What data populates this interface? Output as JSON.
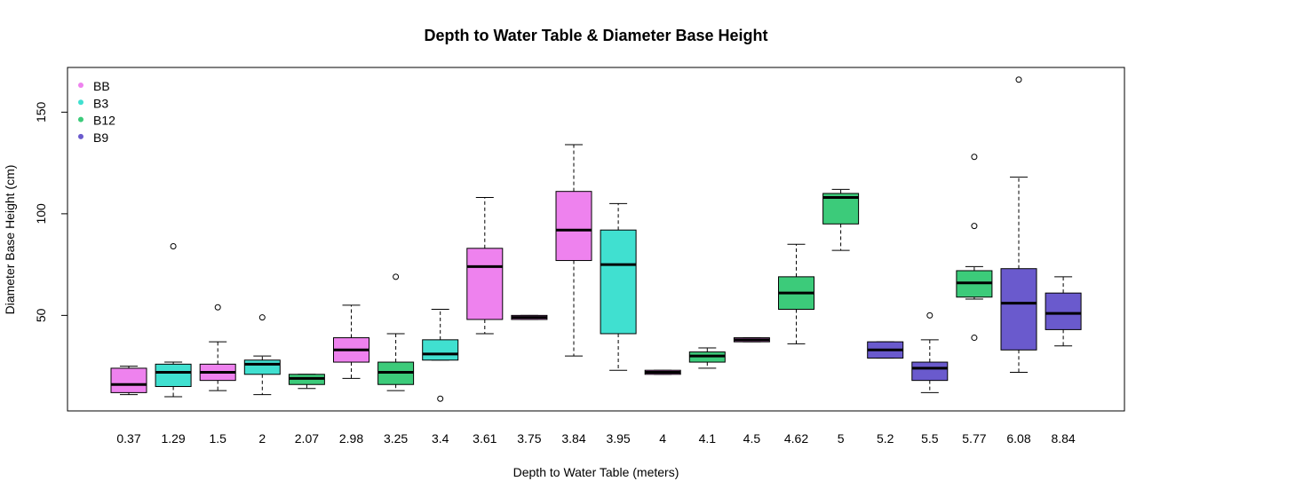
{
  "chart_data": {
    "type": "boxplot",
    "title": "Depth to Water Table & Diameter Base Height",
    "xlabel": "Depth to Water Table (meters)",
    "ylabel": "Diameter Base Height (cm)",
    "yticks": [
      50,
      100,
      150
    ],
    "ylim": [
      3,
      172
    ],
    "grid": false,
    "legend_position": "top-left",
    "legend": [
      {
        "name": "BB",
        "color": "#EE82EE"
      },
      {
        "name": "B3",
        "color": "#40E0D0"
      },
      {
        "name": "B12",
        "color": "#3CCB7A"
      },
      {
        "name": "B9",
        "color": "#6A5ACD"
      }
    ],
    "boxes": [
      {
        "label": "0.37",
        "group": "BB",
        "whisker_low": 11,
        "q1": 12,
        "median": 16,
        "q3": 24,
        "whisker_high": 25,
        "outliers": []
      },
      {
        "label": "1.29",
        "group": "B3",
        "whisker_low": 10,
        "q1": 15,
        "median": 22,
        "q3": 26,
        "whisker_high": 27,
        "outliers": [
          84
        ]
      },
      {
        "label": "1.5",
        "group": "BB",
        "whisker_low": 13,
        "q1": 18,
        "median": 22,
        "q3": 26,
        "whisker_high": 37,
        "outliers": [
          54
        ]
      },
      {
        "label": "2",
        "group": "B3",
        "whisker_low": 11,
        "q1": 21,
        "median": 26,
        "q3": 28,
        "whisker_high": 30,
        "outliers": [
          49
        ]
      },
      {
        "label": "2.07",
        "group": "B12",
        "whisker_low": 14,
        "q1": 16,
        "median": 19,
        "q3": 21,
        "whisker_high": 21,
        "outliers": []
      },
      {
        "label": "2.98",
        "group": "BB",
        "whisker_low": 19,
        "q1": 27,
        "median": 33,
        "q3": 39,
        "whisker_high": 55,
        "outliers": []
      },
      {
        "label": "3.25",
        "group": "B12",
        "whisker_low": 13,
        "q1": 16,
        "median": 22,
        "q3": 27,
        "whisker_high": 41,
        "outliers": [
          69
        ]
      },
      {
        "label": "3.4",
        "group": "B3",
        "whisker_low": 28,
        "q1": 28,
        "median": 31,
        "q3": 38,
        "whisker_high": 53,
        "outliers": [
          9
        ]
      },
      {
        "label": "3.61",
        "group": "BB",
        "whisker_low": 41,
        "q1": 48,
        "median": 74,
        "q3": 83,
        "whisker_high": 108,
        "outliers": []
      },
      {
        "label": "3.75",
        "group": "BB",
        "whisker_low": 48,
        "q1": 48,
        "median": 49,
        "q3": 50,
        "whisker_high": 50,
        "outliers": []
      },
      {
        "label": "3.84",
        "group": "BB",
        "whisker_low": 30,
        "q1": 77,
        "median": 92,
        "q3": 111,
        "whisker_high": 134,
        "outliers": []
      },
      {
        "label": "3.95",
        "group": "B3",
        "whisker_low": 23,
        "q1": 41,
        "median": 75,
        "q3": 92,
        "whisker_high": 105,
        "outliers": []
      },
      {
        "label": "4",
        "group": "BB",
        "whisker_low": 21,
        "q1": 21,
        "median": 22,
        "q3": 23,
        "whisker_high": 23,
        "outliers": []
      },
      {
        "label": "4.1",
        "group": "B12",
        "whisker_low": 24,
        "q1": 27,
        "median": 30,
        "q3": 32,
        "whisker_high": 34,
        "outliers": []
      },
      {
        "label": "4.5",
        "group": "BB",
        "whisker_low": 37,
        "q1": 37,
        "median": 38,
        "q3": 39,
        "whisker_high": 39,
        "outliers": []
      },
      {
        "label": "4.62",
        "group": "B12",
        "whisker_low": 36,
        "q1": 53,
        "median": 61,
        "q3": 69,
        "whisker_high": 85,
        "outliers": []
      },
      {
        "label": "5",
        "group": "B12",
        "whisker_low": 82,
        "q1": 95,
        "median": 108,
        "q3": 110,
        "whisker_high": 112,
        "outliers": []
      },
      {
        "label": "5.2",
        "group": "B9",
        "whisker_low": 29,
        "q1": 29,
        "median": 33,
        "q3": 37,
        "whisker_high": 37,
        "outliers": []
      },
      {
        "label": "5.5",
        "group": "B9",
        "whisker_low": 12,
        "q1": 18,
        "median": 24,
        "q3": 27,
        "whisker_high": 38,
        "outliers": [
          50
        ]
      },
      {
        "label": "5.77",
        "group": "B12",
        "whisker_low": 58,
        "q1": 59,
        "median": 66,
        "q3": 72,
        "whisker_high": 74,
        "outliers": [
          128,
          94,
          39
        ]
      },
      {
        "label": "6.08",
        "group": "B9",
        "whisker_low": 22,
        "q1": 33,
        "median": 56,
        "q3": 73,
        "whisker_high": 118,
        "outliers": [
          166
        ]
      },
      {
        "label": "8.84",
        "group": "B9",
        "whisker_low": 35,
        "q1": 43,
        "median": 51,
        "q3": 61,
        "whisker_high": 69,
        "outliers": []
      }
    ]
  }
}
